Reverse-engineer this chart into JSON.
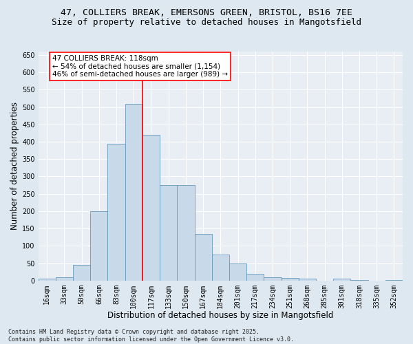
{
  "title_line1": "47, COLLIERS BREAK, EMERSONS GREEN, BRISTOL, BS16 7EE",
  "title_line2": "Size of property relative to detached houses in Mangotsfield",
  "xlabel": "Distribution of detached houses by size in Mangotsfield",
  "ylabel": "Number of detached properties",
  "categories": [
    "16sqm",
    "33sqm",
    "50sqm",
    "66sqm",
    "83sqm",
    "100sqm",
    "117sqm",
    "133sqm",
    "150sqm",
    "167sqm",
    "184sqm",
    "201sqm",
    "217sqm",
    "234sqm",
    "251sqm",
    "268sqm",
    "285sqm",
    "301sqm",
    "318sqm",
    "335sqm",
    "352sqm"
  ],
  "bar_heights": [
    5,
    10,
    45,
    200,
    395,
    510,
    420,
    275,
    275,
    135,
    75,
    50,
    20,
    10,
    8,
    5,
    0,
    5,
    2,
    0,
    1
  ],
  "bar_color": "#c8daea",
  "bar_edge_color": "#6699bb",
  "vline_x": 5.5,
  "vline_color": "red",
  "annotation_title": "47 COLLIERS BREAK: 118sqm",
  "annotation_line1": "← 54% of detached houses are smaller (1,154)",
  "annotation_line2": "46% of semi-detached houses are larger (989) →",
  "annotation_box_color": "white",
  "annotation_box_edge_color": "red",
  "ylim": [
    0,
    660
  ],
  "yticks": [
    0,
    50,
    100,
    150,
    200,
    250,
    300,
    350,
    400,
    450,
    500,
    550,
    600,
    650
  ],
  "footer_line1": "Contains HM Land Registry data © Crown copyright and database right 2025.",
  "footer_line2": "Contains public sector information licensed under the Open Government Licence v3.0.",
  "bg_color": "#dde8f0",
  "plot_bg_color": "#e8eef4",
  "grid_color": "white",
  "title_fontsize": 9.5,
  "subtitle_fontsize": 9,
  "axis_label_fontsize": 8.5,
  "tick_fontsize": 7,
  "annotation_fontsize": 7.5,
  "footer_fontsize": 6
}
